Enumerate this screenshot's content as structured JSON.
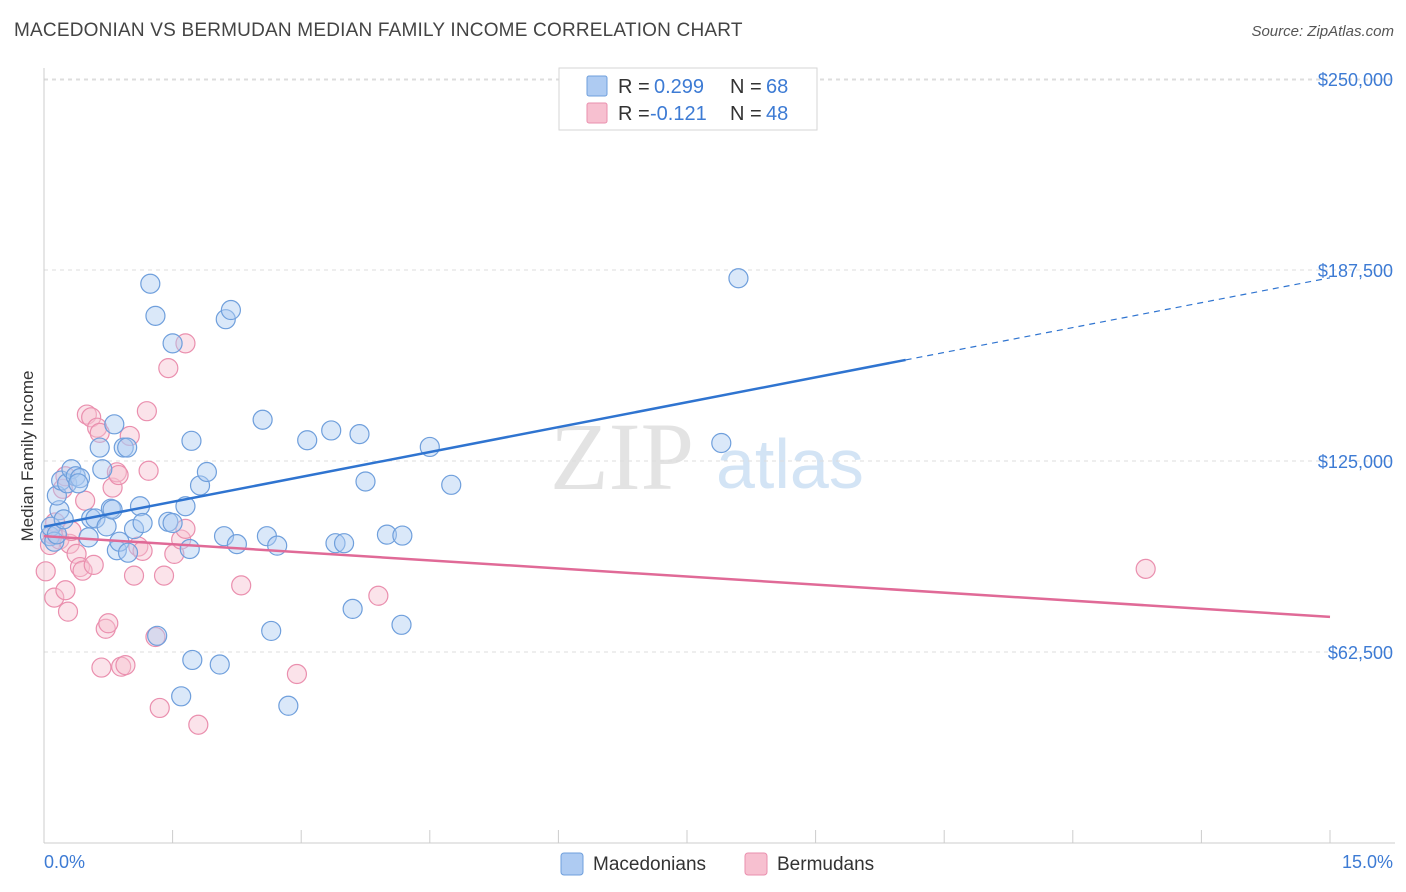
{
  "title": "MACEDONIAN VS BERMUDAN MEDIAN FAMILY INCOME CORRELATION CHART",
  "source": "Source: ZipAtlas.com",
  "watermark": {
    "zip": "ZIP",
    "atlas": "atlas"
  },
  "colors": {
    "blue_fill": "#aecbf2",
    "blue_stroke": "#6f9fdc",
    "blue_line": "#2f74d0",
    "pink_fill": "#f7c0d0",
    "pink_stroke": "#ea8fae",
    "pink_line": "#e06a97",
    "grid": "#dddddd",
    "tick_label": "#3d7bd4"
  },
  "legend": {
    "rows": [
      {
        "r_label": "R =",
        "r_value": "0.299",
        "n_label": "N =",
        "n_value": "68"
      },
      {
        "r_label": "R =",
        "r_value": "-0.121",
        "n_label": "N =",
        "n_value": "48"
      }
    ]
  },
  "bottom_legend": [
    "Macedonians",
    "Bermudans"
  ],
  "chart_data": {
    "type": "scatter",
    "title": "MACEDONIAN VS BERMUDAN MEDIAN FAMILY INCOME CORRELATION CHART",
    "xlabel": "",
    "ylabel": "Median Family Income",
    "xlim": [
      0,
      15
    ],
    "ylim": [
      0,
      255000
    ],
    "x_tick_labels": [
      "0.0%",
      "15.0%"
    ],
    "y_ticks": [
      62500,
      125000,
      187500,
      250000
    ],
    "y_tick_labels": [
      "$62,500",
      "$125,000",
      "$187,500",
      "$250,000"
    ],
    "grid": true,
    "legend_position": "top-center",
    "series": [
      {
        "name": "Macedonians",
        "r": 0.299,
        "n": 68,
        "trend": {
          "x_solid": [
            0,
            10.05
          ],
          "x_dashed": [
            10.05,
            15
          ],
          "y_at_0": 103500,
          "slope_per_pct": 5430
        },
        "points": [
          [
            0.07,
            100400
          ],
          [
            0.08,
            103500
          ],
          [
            0.12,
            98600
          ],
          [
            0.15,
            101000
          ],
          [
            0.18,
            108900
          ],
          [
            0.15,
            113700
          ],
          [
            0.2,
            118600
          ],
          [
            0.23,
            105900
          ],
          [
            0.27,
            117700
          ],
          [
            0.32,
            122300
          ],
          [
            0.37,
            120000
          ],
          [
            0.42,
            119400
          ],
          [
            0.4,
            117700
          ],
          [
            0.52,
            100000
          ],
          [
            0.55,
            106200
          ],
          [
            0.6,
            106200
          ],
          [
            0.65,
            129400
          ],
          [
            0.68,
            122300
          ],
          [
            0.73,
            103600
          ],
          [
            0.78,
            109400
          ],
          [
            0.8,
            109100
          ],
          [
            0.82,
            137000
          ],
          [
            0.85,
            95800
          ],
          [
            0.88,
            98600
          ],
          [
            0.93,
            129400
          ],
          [
            0.97,
            129400
          ],
          [
            0.98,
            95000
          ],
          [
            1.05,
            102700
          ],
          [
            1.12,
            110200
          ],
          [
            1.15,
            104700
          ],
          [
            1.24,
            183000
          ],
          [
            1.3,
            172500
          ],
          [
            1.32,
            67800
          ],
          [
            1.45,
            105100
          ],
          [
            1.5,
            104700
          ],
          [
            1.5,
            163500
          ],
          [
            1.6,
            48000
          ],
          [
            1.65,
            110200
          ],
          [
            1.7,
            96200
          ],
          [
            1.72,
            131600
          ],
          [
            1.73,
            59900
          ],
          [
            1.82,
            117000
          ],
          [
            1.9,
            121400
          ],
          [
            2.05,
            58400
          ],
          [
            2.1,
            100400
          ],
          [
            2.12,
            171400
          ],
          [
            2.18,
            174400
          ],
          [
            2.25,
            97800
          ],
          [
            2.55,
            138500
          ],
          [
            2.6,
            100400
          ],
          [
            2.65,
            69400
          ],
          [
            2.72,
            97300
          ],
          [
            2.85,
            44900
          ],
          [
            3.07,
            131800
          ],
          [
            3.4,
            98100
          ],
          [
            3.35,
            135000
          ],
          [
            3.5,
            98100
          ],
          [
            3.6,
            76600
          ],
          [
            3.68,
            133800
          ],
          [
            3.75,
            118300
          ],
          [
            4.0,
            100900
          ],
          [
            4.18,
            100600
          ],
          [
            4.17,
            71400
          ],
          [
            4.5,
            129600
          ],
          [
            4.75,
            117200
          ],
          [
            7.9,
            130900
          ],
          [
            8.1,
            184800
          ],
          [
            8.2,
            248000
          ]
        ]
      },
      {
        "name": "Bermudans",
        "r": -0.121,
        "n": 48,
        "trend": {
          "x_solid": [
            0,
            15
          ],
          "y_at_0": 100400,
          "slope_per_pct": -1760
        },
        "points": [
          [
            0.02,
            88900
          ],
          [
            0.07,
            97500
          ],
          [
            0.1,
            101000
          ],
          [
            0.12,
            80300
          ],
          [
            0.13,
            104900
          ],
          [
            0.18,
            99300
          ],
          [
            0.22,
            115900
          ],
          [
            0.25,
            120000
          ],
          [
            0.25,
            82700
          ],
          [
            0.28,
            75700
          ],
          [
            0.3,
            97900
          ],
          [
            0.32,
            102100
          ],
          [
            0.38,
            94600
          ],
          [
            0.42,
            90300
          ],
          [
            0.45,
            89100
          ],
          [
            0.48,
            112000
          ],
          [
            0.5,
            140200
          ],
          [
            0.55,
            139300
          ],
          [
            0.58,
            91000
          ],
          [
            0.62,
            135900
          ],
          [
            0.65,
            134200
          ],
          [
            0.67,
            57400
          ],
          [
            0.72,
            70100
          ],
          [
            0.75,
            71900
          ],
          [
            0.8,
            116300
          ],
          [
            0.85,
            121300
          ],
          [
            0.87,
            120400
          ],
          [
            0.9,
            57700
          ],
          [
            0.95,
            58200
          ],
          [
            1.0,
            133200
          ],
          [
            1.05,
            87500
          ],
          [
            1.1,
            97000
          ],
          [
            1.15,
            95600
          ],
          [
            1.2,
            141300
          ],
          [
            1.22,
            121800
          ],
          [
            1.3,
            67400
          ],
          [
            1.35,
            44200
          ],
          [
            1.4,
            87500
          ],
          [
            1.45,
            155400
          ],
          [
            1.52,
            94600
          ],
          [
            1.6,
            99300
          ],
          [
            1.65,
            102800
          ],
          [
            1.65,
            163500
          ],
          [
            1.8,
            38700
          ],
          [
            2.3,
            84300
          ],
          [
            2.95,
            55300
          ],
          [
            3.9,
            80900
          ],
          [
            12.85,
            89700
          ]
        ]
      }
    ]
  }
}
